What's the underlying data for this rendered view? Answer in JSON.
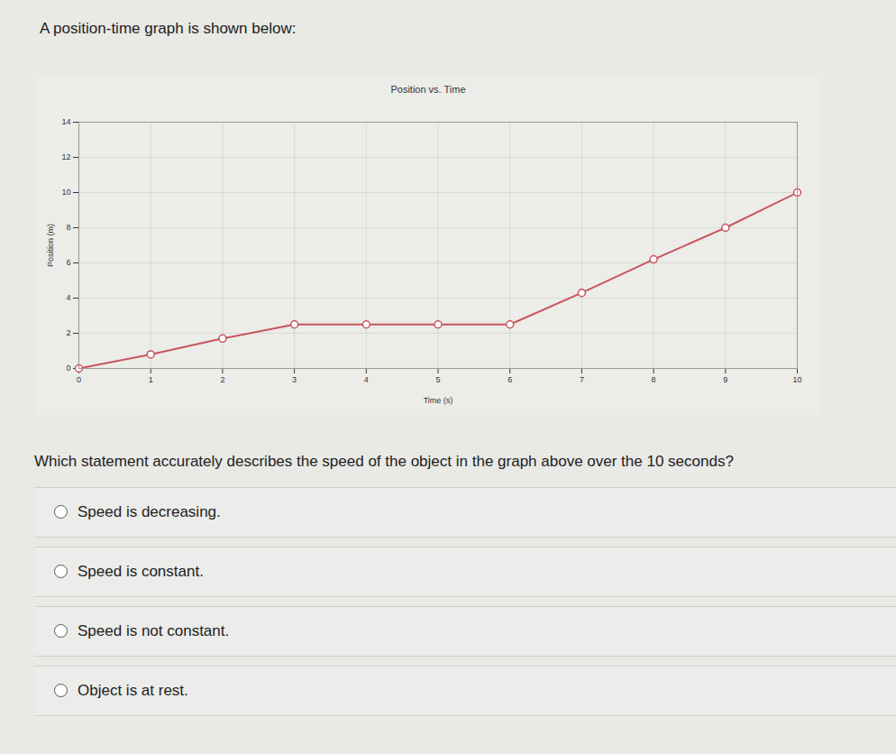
{
  "header": "A position-time graph is shown below:",
  "chart_data": {
    "type": "line",
    "title": "Position vs. Time",
    "x_label": "Time (s)",
    "y_label": "Position (m)",
    "x": [
      0,
      1,
      2,
      3,
      4,
      5,
      6,
      7,
      8,
      9,
      10
    ],
    "values": [
      0,
      0.8,
      1.7,
      2.5,
      2.5,
      2.5,
      2.5,
      4.3,
      6.2,
      8.0,
      10.0
    ],
    "color": "#c9545c",
    "marker": "open_circle",
    "xlim": [
      0,
      10
    ],
    "xticks": [
      0,
      1,
      2,
      3,
      4,
      5,
      6,
      7,
      8,
      9,
      10
    ],
    "ylim": [
      0,
      14
    ],
    "yticks": [
      0,
      2,
      4,
      6,
      8,
      10,
      12,
      14
    ],
    "grid": true
  },
  "question": "Which statement accurately describes the speed of the object in the graph above over the 10 seconds?",
  "options": [
    "Speed is decreasing.",
    "Speed is constant.",
    "Speed is not constant.",
    "Object is at rest."
  ]
}
